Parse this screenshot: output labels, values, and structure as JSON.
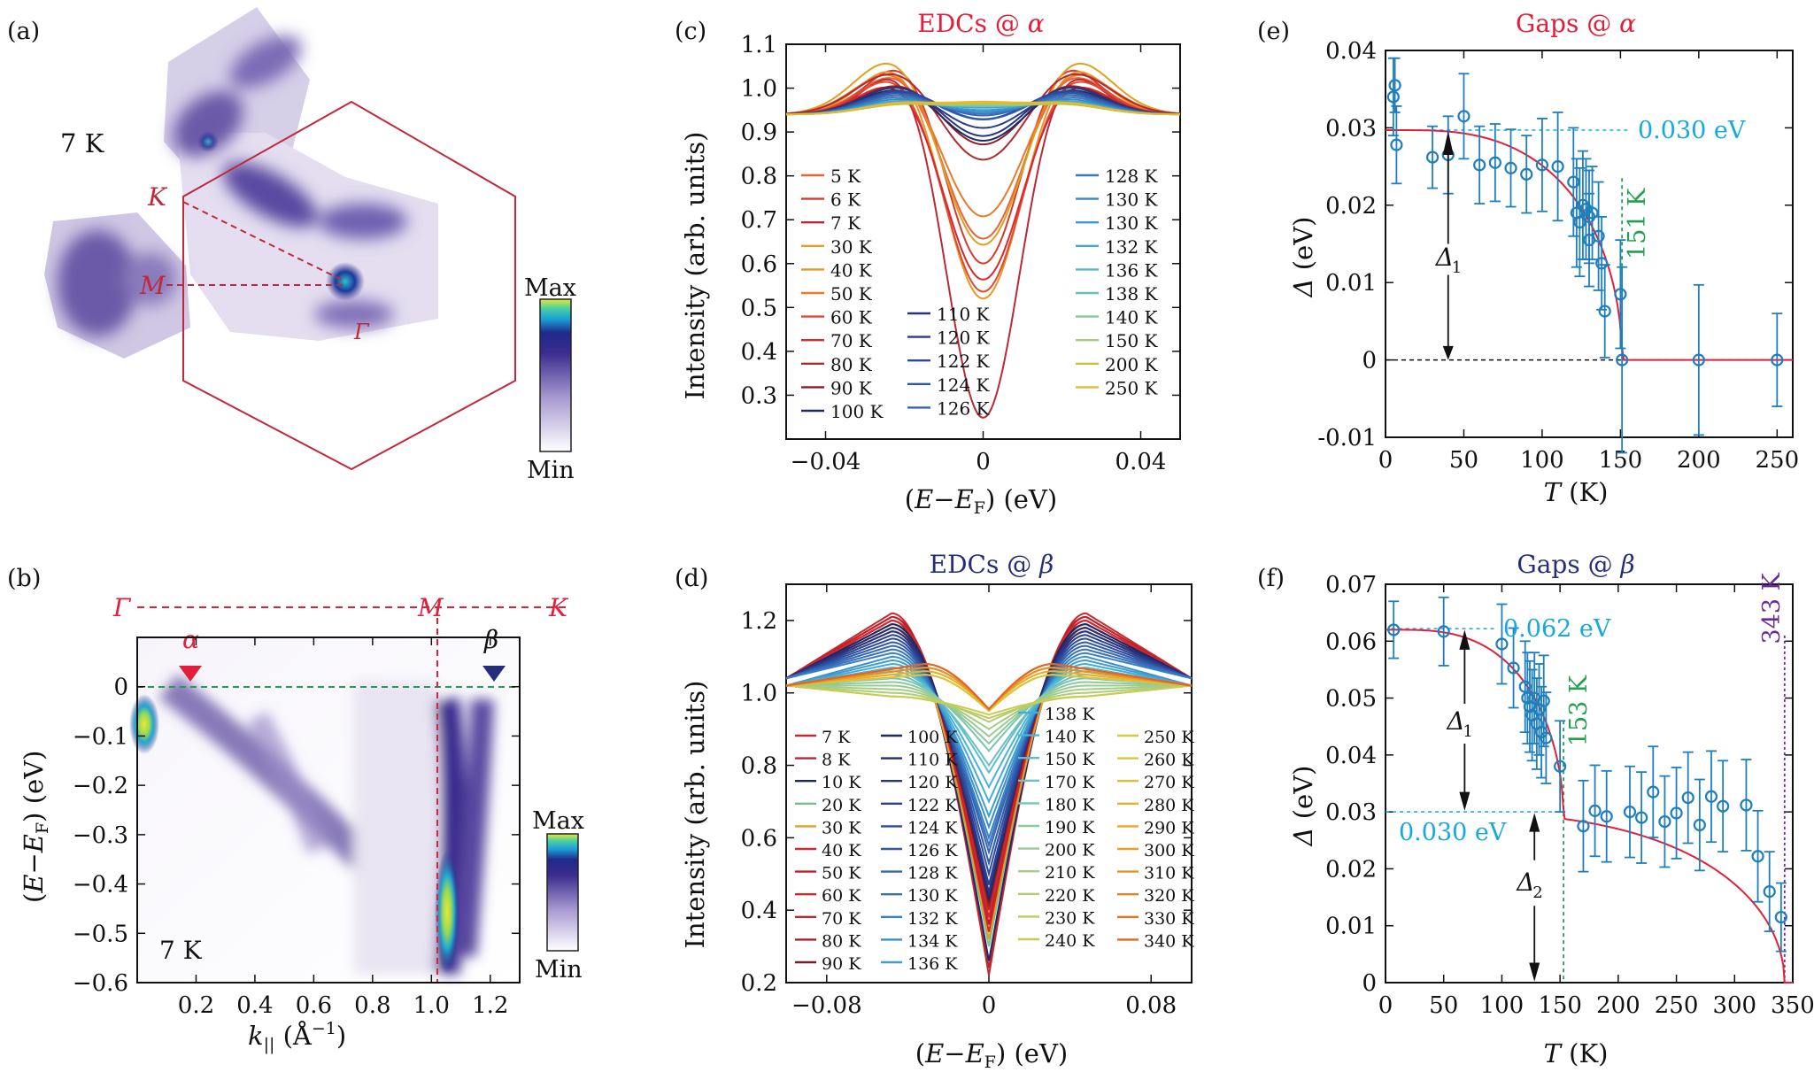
{
  "panel_letters": {
    "a": "(a)",
    "b": "(b)",
    "c": "(c)",
    "d": "(d)",
    "e": "(e)",
    "f": "(f)"
  },
  "colors": {
    "red": "#e0203a",
    "navy": "#242e7a",
    "blue": "#1f7fbd",
    "cyan": "#17a8dc",
    "green": "#22a050",
    "purple": "#6a2a9a",
    "bz": "#c0283c"
  },
  "panel_a": {
    "temperature": "7 K",
    "K": "K",
    "M": "M",
    "Gamma": "Γ",
    "colorbar_max": "Max",
    "colorbar_min": "Min"
  },
  "panel_b": {
    "temperature": "7 K",
    "path_gamma": "Γ",
    "path_M": "M",
    "path_K": "K",
    "alpha": "α",
    "beta": "β",
    "colorbar_max": "Max",
    "colorbar_min": "Min"
  },
  "chart_data": [
    {
      "id": "b",
      "type": "heatmap",
      "xlabel": "k|| (Å⁻¹)",
      "ylabel": "(E−EF) (eV)",
      "xlim": [
        0,
        1.3
      ],
      "ylim": [
        -0.6,
        0.1
      ],
      "xticks": [
        "0.2",
        "0.4",
        "0.6",
        "0.8",
        "1.0",
        "1.2"
      ],
      "xtick_values": [
        0.2,
        0.4,
        0.6,
        0.8,
        1.0,
        1.2
      ],
      "yticks": [
        "0",
        "−0.1",
        "−0.2",
        "−0.3",
        "−0.4",
        "−0.5",
        "−0.6"
      ],
      "ytick_values": [
        0,
        -0.1,
        -0.2,
        -0.3,
        -0.4,
        -0.5,
        -0.6
      ],
      "M_position": 1.0,
      "alpha_k": 0.18,
      "beta_k": 1.17
    },
    {
      "id": "c",
      "type": "line",
      "title": "EDCs @ α",
      "xlabel": "(E−EF) (eV)",
      "ylabel": "Intensity (arb. units)",
      "xlim": [
        -0.05,
        0.05
      ],
      "ylim": [
        0.2,
        1.1
      ],
      "xticks": [
        "−0.04",
        "0",
        "0.04"
      ],
      "xtick_values": [
        -0.04,
        0,
        0.04
      ],
      "yticks": [
        "0.3",
        "0.4",
        "0.5",
        "0.6",
        "0.7",
        "0.8",
        "0.9",
        "1.0",
        "1.1"
      ],
      "ytick_values": [
        0.3,
        0.4,
        0.5,
        0.6,
        0.7,
        0.8,
        0.9,
        1.0,
        1.1
      ],
      "series": [
        {
          "name": "5 K",
          "color": "#e8623a",
          "min": 0.64,
          "peak": 1.04,
          "width": 0.021
        },
        {
          "name": "6 K",
          "color": "#d83a30",
          "min": 0.58,
          "peak": 1.06,
          "width": 0.02
        },
        {
          "name": "7 K",
          "color": "#b82a35",
          "min": 0.23,
          "peak": 1.05,
          "width": 0.02
        },
        {
          "name": "30 K",
          "color": "#e0a020",
          "min": 0.62,
          "peak": 1.075,
          "width": 0.022
        },
        {
          "name": "40 K",
          "color": "#e89628",
          "min": 0.5,
          "peak": 1.06,
          "width": 0.021
        },
        {
          "name": "50 K",
          "color": "#e87a28",
          "min": 0.69,
          "peak": 1.045,
          "width": 0.022
        },
        {
          "name": "60 K",
          "color": "#e04a30",
          "min": 0.52,
          "peak": 1.035,
          "width": 0.021
        },
        {
          "name": "70 K",
          "color": "#d82a2a",
          "min": 0.55,
          "peak": 1.02,
          "width": 0.021
        },
        {
          "name": "80 K",
          "color": "#b4282e",
          "min": 0.82,
          "peak": 1.04,
          "width": 0.022
        },
        {
          "name": "90 K",
          "color": "#8a1e2a",
          "min": 0.86,
          "peak": 1.01,
          "width": 0.021
        },
        {
          "name": "100 K",
          "color": "#1e2a6a",
          "min": 0.87,
          "peak": 1.0,
          "width": 0.021
        },
        {
          "name": "110 K",
          "color": "#24347e",
          "min": 0.88,
          "peak": 1.005,
          "width": 0.021
        },
        {
          "name": "120 K",
          "color": "#283c90",
          "min": 0.9,
          "peak": 0.995,
          "width": 0.021
        },
        {
          "name": "122 K",
          "color": "#2c4a9c",
          "min": 0.92,
          "peak": 0.995,
          "width": 0.021
        },
        {
          "name": "124 K",
          "color": "#3058a8",
          "min": 0.92,
          "peak": 0.99,
          "width": 0.021
        },
        {
          "name": "126 K",
          "color": "#3466b4",
          "min": 0.93,
          "peak": 0.985,
          "width": 0.021
        },
        {
          "name": "128 K",
          "color": "#3876be",
          "min": 0.935,
          "peak": 0.98,
          "width": 0.021
        },
        {
          "name": "130 K",
          "color": "#3888c6",
          "min": 0.94,
          "peak": 0.975,
          "width": 0.021
        },
        {
          "name": "130 K",
          "color": "#3a98cc",
          "min": 0.945,
          "peak": 0.97,
          "width": 0.021
        },
        {
          "name": "132 K",
          "color": "#40a8d2",
          "min": 0.95,
          "peak": 0.97,
          "width": 0.021
        },
        {
          "name": "136 K",
          "color": "#52b8cc",
          "min": 0.955,
          "peak": 0.965,
          "width": 0.021
        },
        {
          "name": "138 K",
          "color": "#6ac0b8",
          "min": 0.955,
          "peak": 0.965,
          "width": 0.021
        },
        {
          "name": "140 K",
          "color": "#88c89e",
          "min": 0.958,
          "peak": 0.962,
          "width": 0.021
        },
        {
          "name": "150 K",
          "color": "#a8cc7e",
          "min": 0.96,
          "peak": 0.962,
          "width": 0.021
        },
        {
          "name": "200 K",
          "color": "#d0c030",
          "min": 0.962,
          "peak": 0.962,
          "width": 0.021
        },
        {
          "name": "250 K",
          "color": "#e8b830",
          "min": 0.965,
          "peak": 0.965,
          "width": 0.021
        }
      ]
    },
    {
      "id": "d",
      "type": "line",
      "title": "EDCs @ β",
      "xlabel": "(E−EF) (eV)",
      "ylabel": "Intensity (arb. units)",
      "xlim": [
        -0.1,
        0.1
      ],
      "ylim": [
        0.2,
        1.3
      ],
      "xticks": [
        "−0.08",
        "0",
        "0.08"
      ],
      "xtick_values": [
        -0.08,
        0,
        0.08
      ],
      "yticks": [
        "0.2",
        "0.4",
        "0.6",
        "0.8",
        "1.0",
        "1.2"
      ],
      "ytick_values": [
        0.2,
        0.4,
        0.6,
        0.8,
        1.0,
        1.2
      ],
      "series": [
        {
          "name": "7 K",
          "color": "#c82a30",
          "min": 0.22,
          "peak": 1.22
        },
        {
          "name": "8 K",
          "color": "#b02a34",
          "min": 0.24,
          "peak": 1.21
        },
        {
          "name": "10 K",
          "color": "#1c2868",
          "min": 0.26,
          "peak": 1.2
        },
        {
          "name": "20 K",
          "color": "#78c08e",
          "min": 0.3,
          "peak": 1.19
        },
        {
          "name": "30 K",
          "color": "#e0a028",
          "min": 0.32,
          "peak": 1.18
        },
        {
          "name": "40 K",
          "color": "#d02a2a",
          "min": 0.34,
          "peak": 1.2
        },
        {
          "name": "50 K",
          "color": "#c41e28",
          "min": 0.36,
          "peak": 1.21
        },
        {
          "name": "60 K",
          "color": "#d8282c",
          "min": 0.38,
          "peak": 1.2
        },
        {
          "name": "70 K",
          "color": "#b82a30",
          "min": 0.4,
          "peak": 1.19
        },
        {
          "name": "80 K",
          "color": "#a02430",
          "min": 0.41,
          "peak": 1.18
        },
        {
          "name": "90 K",
          "color": "#7a1a28",
          "min": 0.42,
          "peak": 1.17
        },
        {
          "name": "100 K",
          "color": "#1e2664",
          "min": 0.43,
          "peak": 1.19
        },
        {
          "name": "110 K",
          "color": "#222e74",
          "min": 0.44,
          "peak": 1.18
        },
        {
          "name": "120 K",
          "color": "#263684",
          "min": 0.45,
          "peak": 1.17
        },
        {
          "name": "122 K",
          "color": "#2a4090",
          "min": 0.47,
          "peak": 1.16
        },
        {
          "name": "124 K",
          "color": "#2e4c9c",
          "min": 0.5,
          "peak": 1.15
        },
        {
          "name": "126 K",
          "color": "#3258a8",
          "min": 0.53,
          "peak": 1.14
        },
        {
          "name": "128 K",
          "color": "#3466b2",
          "min": 0.56,
          "peak": 1.13
        },
        {
          "name": "130 K",
          "color": "#3672bc",
          "min": 0.58,
          "peak": 1.12
        },
        {
          "name": "132 K",
          "color": "#3880c4",
          "min": 0.6,
          "peak": 1.11
        },
        {
          "name": "134 K",
          "color": "#3a90cc",
          "min": 0.63,
          "peak": 1.1
        },
        {
          "name": "136 K",
          "color": "#3e9ed2",
          "min": 0.66,
          "peak": 1.09
        },
        {
          "name": "138 K",
          "color": "#44acd6",
          "min": 0.7,
          "peak": 1.08
        },
        {
          "name": "140 K",
          "color": "#48b4d8",
          "min": 0.74,
          "peak": 1.07
        },
        {
          "name": "150 K",
          "color": "#5cbcd0",
          "min": 0.78,
          "peak": 1.06
        },
        {
          "name": "170 K",
          "color": "#6cc0c0",
          "min": 0.8,
          "peak": 1.05
        },
        {
          "name": "180 K",
          "color": "#7cc4b0",
          "min": 0.84,
          "peak": 1.04
        },
        {
          "name": "190 K",
          "color": "#8cc8a0",
          "min": 0.86,
          "peak": 1.03
        },
        {
          "name": "200 K",
          "color": "#9acc92",
          "min": 0.88,
          "peak": 1.02
        },
        {
          "name": "210 K",
          "color": "#a4cc84",
          "min": 0.9,
          "peak": 1.01
        },
        {
          "name": "220 K",
          "color": "#b0cc74",
          "min": 0.92,
          "peak": 1.0
        },
        {
          "name": "230 K",
          "color": "#bccc62",
          "min": 0.93,
          "peak": 0.99
        },
        {
          "name": "240 K",
          "color": "#c8cc52",
          "min": 0.94,
          "peak": 0.99
        },
        {
          "name": "250 K",
          "color": "#d4c844",
          "min": 0.95,
          "peak": 1.05
        },
        {
          "name": "260 K",
          "color": "#dcc43a",
          "min": 0.95,
          "peak": 1.05
        },
        {
          "name": "270 K",
          "color": "#e2bc32",
          "min": 0.955,
          "peak": 1.06
        },
        {
          "name": "280 K",
          "color": "#e6b22c",
          "min": 0.955,
          "peak": 1.06
        },
        {
          "name": "290 K",
          "color": "#e8a828",
          "min": 0.955,
          "peak": 1.07
        },
        {
          "name": "300 K",
          "color": "#ea9c26",
          "min": 0.955,
          "peak": 1.07
        },
        {
          "name": "310 K",
          "color": "#ea9024",
          "min": 0.955,
          "peak": 1.07
        },
        {
          "name": "320 K",
          "color": "#e88224",
          "min": 0.955,
          "peak": 1.08
        },
        {
          "name": "330 K",
          "color": "#e47424",
          "min": 0.955,
          "peak": 1.08
        },
        {
          "name": "340 K",
          "color": "#e06626",
          "min": 0.955,
          "peak": 1.08
        }
      ]
    },
    {
      "id": "e",
      "type": "scatter",
      "title": "Gaps @ α",
      "xlabel": "T (K)",
      "ylabel": "Δ (eV)",
      "xlim": [
        0,
        260
      ],
      "ylim": [
        -0.01,
        0.04
      ],
      "xticks": [
        "0",
        "50",
        "100",
        "150",
        "200",
        "250"
      ],
      "xtick_values": [
        0,
        50,
        100,
        150,
        200,
        250
      ],
      "yticks": [
        "-0.01",
        "0",
        "0.01",
        "0.02",
        "0.03",
        "0.04"
      ],
      "ytick_values": [
        -0.01,
        0,
        0.01,
        0.02,
        0.03,
        0.04
      ],
      "points": [
        {
          "x": 5,
          "y": 0.034,
          "err": 0.005
        },
        {
          "x": 6,
          "y": 0.0355,
          "err": 0.0035
        },
        {
          "x": 7,
          "y": 0.0278,
          "err": 0.005
        },
        {
          "x": 30,
          "y": 0.0262,
          "err": 0.004
        },
        {
          "x": 40,
          "y": 0.0265,
          "err": 0.005
        },
        {
          "x": 50,
          "y": 0.0315,
          "err": 0.0055
        },
        {
          "x": 60,
          "y": 0.0252,
          "err": 0.005
        },
        {
          "x": 70,
          "y": 0.0255,
          "err": 0.005
        },
        {
          "x": 80,
          "y": 0.0248,
          "err": 0.005
        },
        {
          "x": 90,
          "y": 0.024,
          "err": 0.005
        },
        {
          "x": 100,
          "y": 0.0252,
          "err": 0.006
        },
        {
          "x": 110,
          "y": 0.025,
          "err": 0.007
        },
        {
          "x": 120,
          "y": 0.023,
          "err": 0.007
        },
        {
          "x": 122,
          "y": 0.019,
          "err": 0.007
        },
        {
          "x": 124,
          "y": 0.0178,
          "err": 0.007
        },
        {
          "x": 126,
          "y": 0.02,
          "err": 0.007
        },
        {
          "x": 128,
          "y": 0.0195,
          "err": 0.0065
        },
        {
          "x": 130,
          "y": 0.0185,
          "err": 0.006
        },
        {
          "x": 130,
          "y": 0.0155,
          "err": 0.006
        },
        {
          "x": 132,
          "y": 0.019,
          "err": 0.006
        },
        {
          "x": 136,
          "y": 0.016,
          "err": 0.007
        },
        {
          "x": 138,
          "y": 0.0125,
          "err": 0.006
        },
        {
          "x": 140,
          "y": 0.0063,
          "err": 0.006
        },
        {
          "x": 150,
          "y": 0.0085,
          "err": 0.007
        },
        {
          "x": 151,
          "y": 0.0,
          "err": 0.012
        },
        {
          "x": 200,
          "y": 0.0,
          "err": 0.0097
        },
        {
          "x": 250,
          "y": 0.0,
          "err": 0.006
        }
      ],
      "fit": {
        "delta0": 0.0297,
        "Tc": 151
      },
      "annotations": {
        "gap_value": "0.030 eV",
        "Tc_label": "151 K",
        "delta": "Δ",
        "sub1": "1"
      }
    },
    {
      "id": "f",
      "type": "scatter",
      "title": "Gaps @ β",
      "xlabel": "T (K)",
      "ylabel": "Δ (eV)",
      "xlim": [
        0,
        350
      ],
      "ylim": [
        0,
        0.07
      ],
      "xticks": [
        "0",
        "50",
        "100",
        "150",
        "200",
        "250",
        "300",
        "350"
      ],
      "xtick_values": [
        0,
        50,
        100,
        150,
        200,
        250,
        300,
        350
      ],
      "yticks": [
        "0",
        "0.01",
        "0.02",
        "0.03",
        "0.04",
        "0.05",
        "0.06",
        "0.07"
      ],
      "ytick_values": [
        0,
        0.01,
        0.02,
        0.03,
        0.04,
        0.05,
        0.06,
        0.07
      ],
      "points": [
        {
          "x": 7,
          "y": 0.062,
          "err": 0.005
        },
        {
          "x": 50,
          "y": 0.0617,
          "err": 0.006
        },
        {
          "x": 100,
          "y": 0.0595,
          "err": 0.007
        },
        {
          "x": 110,
          "y": 0.0553,
          "err": 0.007
        },
        {
          "x": 120,
          "y": 0.052,
          "err": 0.008
        },
        {
          "x": 122,
          "y": 0.05,
          "err": 0.008
        },
        {
          "x": 124,
          "y": 0.0485,
          "err": 0.008
        },
        {
          "x": 126,
          "y": 0.047,
          "err": 0.008
        },
        {
          "x": 128,
          "y": 0.05,
          "err": 0.008
        },
        {
          "x": 130,
          "y": 0.0455,
          "err": 0.008
        },
        {
          "x": 132,
          "y": 0.048,
          "err": 0.008
        },
        {
          "x": 134,
          "y": 0.044,
          "err": 0.008
        },
        {
          "x": 136,
          "y": 0.0495,
          "err": 0.008
        },
        {
          "x": 138,
          "y": 0.043,
          "err": 0.008
        },
        {
          "x": 150,
          "y": 0.038,
          "err": 0.008
        },
        {
          "x": 170,
          "y": 0.0275,
          "err": 0.008
        },
        {
          "x": 180,
          "y": 0.0302,
          "err": 0.008
        },
        {
          "x": 190,
          "y": 0.0292,
          "err": 0.008
        },
        {
          "x": 210,
          "y": 0.03,
          "err": 0.008
        },
        {
          "x": 220,
          "y": 0.029,
          "err": 0.008
        },
        {
          "x": 230,
          "y": 0.0335,
          "err": 0.008
        },
        {
          "x": 240,
          "y": 0.0283,
          "err": 0.008
        },
        {
          "x": 250,
          "y": 0.0298,
          "err": 0.008
        },
        {
          "x": 260,
          "y": 0.0325,
          "err": 0.008
        },
        {
          "x": 270,
          "y": 0.0277,
          "err": 0.008
        },
        {
          "x": 280,
          "y": 0.0327,
          "err": 0.008
        },
        {
          "x": 290,
          "y": 0.031,
          "err": 0.008
        },
        {
          "x": 310,
          "y": 0.0312,
          "err": 0.008
        },
        {
          "x": 320,
          "y": 0.0222,
          "err": 0.008
        },
        {
          "x": 330,
          "y": 0.016,
          "err": 0.007
        },
        {
          "x": 340,
          "y": 0.0115,
          "err": 0.006
        }
      ],
      "fit": {
        "delta1": 0.032,
        "Tc1": 153,
        "delta2": 0.03,
        "Tc2": 343
      },
      "annotations": {
        "gap_value1": "0.062 eV",
        "gap_value2": "0.030 eV",
        "Tc1_label": "153 K",
        "Tc2_label": "343 K",
        "delta": "Δ",
        "sub1": "1",
        "sub2": "2"
      }
    }
  ]
}
